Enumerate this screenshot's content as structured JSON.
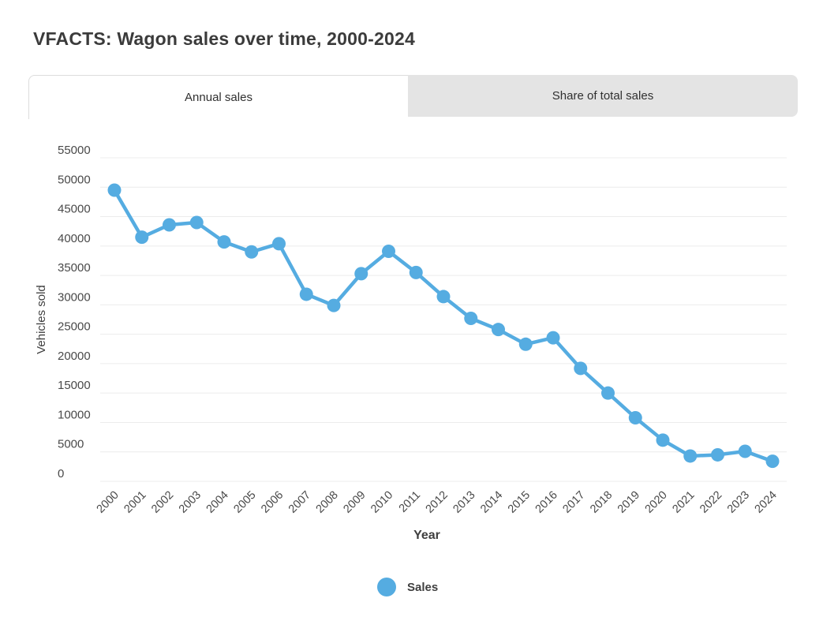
{
  "header": {
    "title": "VFACTS: Wagon sales over time, 2000-2024"
  },
  "tabs": [
    {
      "label": "Annual sales",
      "active": true
    },
    {
      "label": "Share of total sales",
      "active": false
    }
  ],
  "chart_data": {
    "type": "line",
    "title": "VFACTS: Wagon sales over time, 2000-2024",
    "xlabel": "Year",
    "ylabel": "Vehicles sold",
    "categories": [
      "2000",
      "2001",
      "2002",
      "2003",
      "2004",
      "2005",
      "2006",
      "2007",
      "2008",
      "2009",
      "2010",
      "2011",
      "2012",
      "2013",
      "2014",
      "2015",
      "2016",
      "2017",
      "2018",
      "2019",
      "2020",
      "2021",
      "2022",
      "2023",
      "2024"
    ],
    "series": [
      {
        "name": "Sales",
        "color": "#55ace1",
        "values": [
          49500,
          41500,
          43600,
          44000,
          40700,
          39000,
          40400,
          31800,
          29900,
          35300,
          39100,
          35500,
          31400,
          27700,
          25800,
          23300,
          24400,
          19200,
          15000,
          10800,
          7000,
          4300,
          4500,
          5100,
          3400
        ]
      }
    ],
    "ylim": [
      0,
      55000
    ],
    "ytick_step": 5000,
    "grid": true,
    "legend_position": "bottom"
  },
  "colors": {
    "accent_blue": "#55ace1",
    "grid_line": "#ececec",
    "tick_text": "#494949",
    "axis_title_text": "#3f3f3f",
    "title_text": "#3b3b3b",
    "tab_inactive_bg": "#e4e4e4",
    "tab_border": "#dcdcdc"
  }
}
